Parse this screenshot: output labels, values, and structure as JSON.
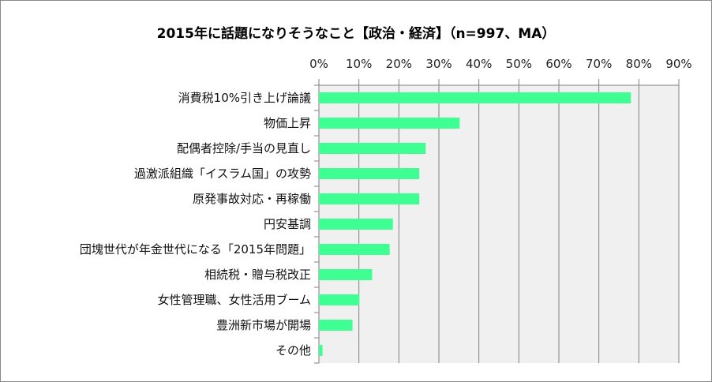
{
  "chart_data": {
    "type": "bar",
    "orientation": "horizontal",
    "title": "2015年に話題になりそうなこと【政治・経済】（n=997、MA）",
    "categories": [
      "消費税10%引き上げ論議",
      "物価上昇",
      "配偶者控除/手当の見直し",
      "過激派組織「イスラム国」の攻勢",
      "原発事故対応・再稼働",
      "円安基調",
      "団塊世代が年金世代になる「2015年問題」",
      "相続税・贈与税改正",
      "女性管理職、女性活用ブーム",
      "豊洲新市場が開場",
      "その他"
    ],
    "values": [
      78.0,
      35.2,
      26.7,
      25.1,
      25.1,
      18.5,
      17.7,
      13.3,
      10.1,
      8.4,
      0.9
    ],
    "xlim": [
      0,
      90
    ],
    "ticks": [
      "0%",
      "10%",
      "20%",
      "30%",
      "40%",
      "50%",
      "60%",
      "70%",
      "80%",
      "90%"
    ],
    "xlabel": "",
    "ylabel": "",
    "grid": true,
    "bar_color": "#40FF92",
    "plot_bg": "#F0F0F0",
    "legend": "none"
  }
}
